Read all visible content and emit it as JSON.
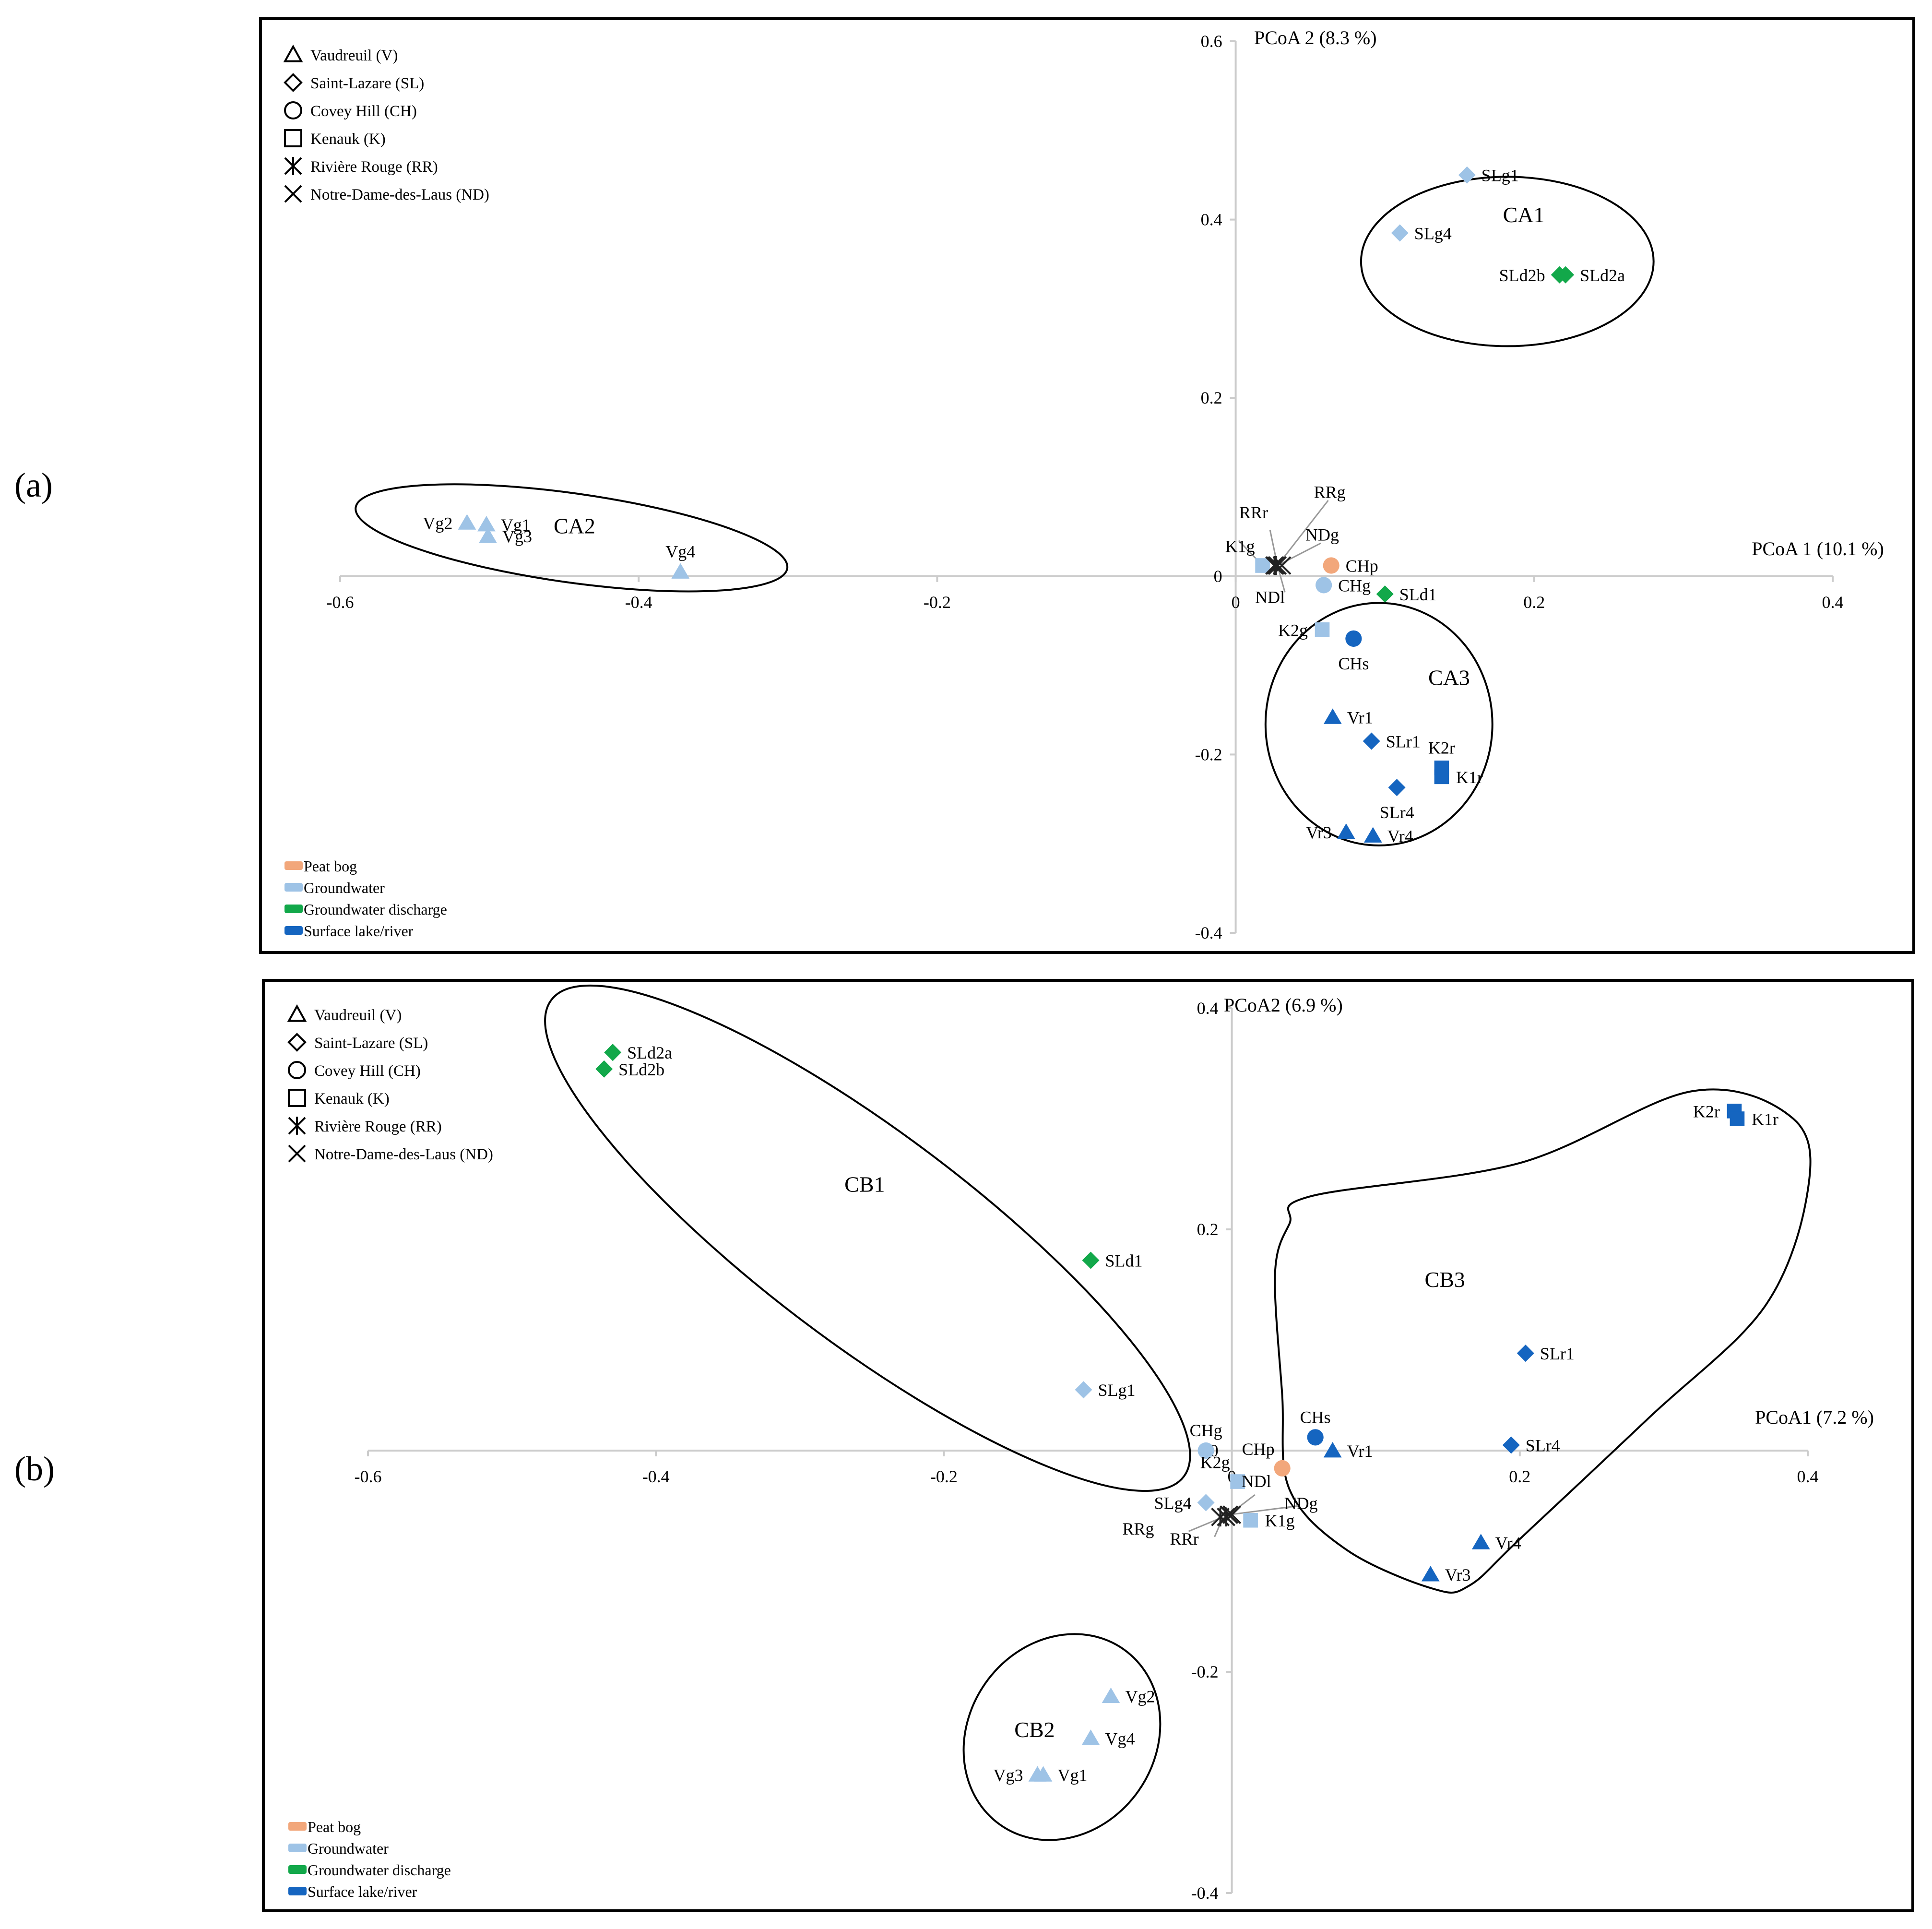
{
  "colors": {
    "peat": "#F2A77B",
    "groundwater": "#9EC3E6",
    "discharge": "#12A84A",
    "surface": "#1565C0",
    "axis": "#cccccc"
  },
  "chart_data": [
    {
      "panel_label": "(a)",
      "type": "scatter",
      "xlabel": "PCoA 1 (10.1 %)",
      "ylabel": "PCoA 2 (8.3 %)",
      "xlim": [
        -0.6,
        0.4
      ],
      "ylim": [
        -0.4,
        0.6
      ],
      "xticks": [
        "-0.6",
        "-0.4",
        "-0.2",
        "0",
        "0.2",
        "0.4"
      ],
      "yticks": [
        "0.6",
        "0.4",
        "0.2",
        "0",
        "-0.2",
        "-0.4"
      ],
      "shape_legend": [
        {
          "shape": "triangle",
          "label": "Vaudreuil (V)"
        },
        {
          "shape": "diamond",
          "label": "Saint-Lazare (SL)"
        },
        {
          "shape": "circle",
          "label": "Covey Hill (CH)"
        },
        {
          "shape": "square",
          "label": "Kenauk (K)"
        },
        {
          "shape": "asterisk",
          "label": "Rivière Rouge (RR)"
        },
        {
          "shape": "cross",
          "label": "Notre-Dame-des-Laus (ND)"
        }
      ],
      "color_legend": [
        {
          "type": "peat",
          "label": "Peat bog"
        },
        {
          "type": "groundwater",
          "label": "Groundwater"
        },
        {
          "type": "discharge",
          "label": "Groundwater discharge"
        },
        {
          "type": "surface",
          "label": "Surface lake/river"
        }
      ],
      "points": [
        {
          "label": "SLg1",
          "x": 0.155,
          "y": 0.45,
          "shape": "diamond",
          "type": "groundwater",
          "lpos": "r"
        },
        {
          "label": "SLg4",
          "x": 0.11,
          "y": 0.385,
          "shape": "diamond",
          "type": "groundwater",
          "lpos": "r"
        },
        {
          "label": "SLd2b",
          "x": 0.217,
          "y": 0.338,
          "shape": "diamond",
          "type": "discharge",
          "lpos": "l"
        },
        {
          "label": "SLd2a",
          "x": 0.221,
          "y": 0.338,
          "shape": "diamond",
          "type": "discharge",
          "lpos": "r"
        },
        {
          "label": "Vg2",
          "x": -0.515,
          "y": 0.06,
          "shape": "triangle",
          "type": "groundwater",
          "lpos": "l"
        },
        {
          "label": "Vg1",
          "x": -0.502,
          "y": 0.058,
          "shape": "triangle",
          "type": "groundwater",
          "lpos": "r"
        },
        {
          "label": "Vg3",
          "x": -0.501,
          "y": 0.045,
          "shape": "triangle",
          "type": "groundwater",
          "lpos": "r"
        },
        {
          "label": "Vg4",
          "x": -0.372,
          "y": 0.005,
          "shape": "triangle",
          "type": "groundwater",
          "lpos": "t"
        },
        {
          "label": "K1g",
          "x": 0.018,
          "y": 0.012,
          "shape": "square",
          "type": "groundwater",
          "lpos": "tl"
        },
        {
          "label": "RRr",
          "x": 0.027,
          "y": 0.012,
          "shape": "asterisk",
          "type": "groundwater",
          "lpos": "none"
        },
        {
          "label": "RRg",
          "x": 0.026,
          "y": 0.012,
          "shape": "asterisk",
          "type": "groundwater",
          "lpos": "none"
        },
        {
          "label": "NDl",
          "x": 0.028,
          "y": 0.012,
          "shape": "cross",
          "type": "groundwater",
          "lpos": "none"
        },
        {
          "label": "NDg",
          "x": 0.031,
          "y": 0.012,
          "shape": "cross",
          "type": "groundwater",
          "lpos": "none"
        },
        {
          "label": "CHp",
          "x": 0.064,
          "y": 0.012,
          "shape": "circle",
          "type": "peat",
          "lpos": "r"
        },
        {
          "label": "CHg",
          "x": 0.059,
          "y": -0.01,
          "shape": "circle",
          "type": "groundwater",
          "lpos": "r"
        },
        {
          "label": "SLd1",
          "x": 0.1,
          "y": -0.02,
          "shape": "diamond",
          "type": "discharge",
          "lpos": "r"
        },
        {
          "label": "K2g",
          "x": 0.058,
          "y": -0.06,
          "shape": "square",
          "type": "groundwater",
          "lpos": "l"
        },
        {
          "label": "CHs",
          "x": 0.079,
          "y": -0.07,
          "shape": "circle",
          "type": "surface",
          "lpos": "b"
        },
        {
          "label": "Vr1",
          "x": 0.065,
          "y": -0.158,
          "shape": "triangle",
          "type": "surface",
          "lpos": "r"
        },
        {
          "label": "SLr1",
          "x": 0.091,
          "y": -0.185,
          "shape": "diamond",
          "type": "surface",
          "lpos": "r"
        },
        {
          "label": "K2r",
          "x": 0.138,
          "y": -0.215,
          "shape": "square",
          "type": "surface",
          "lpos": "t"
        },
        {
          "label": "K1r",
          "x": 0.138,
          "y": -0.225,
          "shape": "square",
          "type": "surface",
          "lpos": "r"
        },
        {
          "label": "SLr4",
          "x": 0.108,
          "y": -0.237,
          "shape": "diamond",
          "type": "surface",
          "lpos": "b"
        },
        {
          "label": "Vr3",
          "x": 0.074,
          "y": -0.287,
          "shape": "triangle",
          "type": "surface",
          "lpos": "l"
        },
        {
          "label": "Vr4",
          "x": 0.092,
          "y": -0.291,
          "shape": "triangle",
          "type": "surface",
          "lpos": "r"
        }
      ],
      "free_labels": [
        {
          "text": "RRg",
          "x": 0.063,
          "y": 0.088
        },
        {
          "text": "RRr",
          "x": 0.012,
          "y": 0.065
        },
        {
          "text": "NDg",
          "x": 0.058,
          "y": 0.04
        },
        {
          "text": "NDl",
          "x": 0.023,
          "y": -0.03
        }
      ],
      "leader_lines": [
        {
          "from": [
            0.028,
            0.012
          ],
          "to": [
            0.062,
            0.085
          ]
        },
        {
          "from": [
            0.028,
            0.012
          ],
          "to": [
            0.023,
            0.052
          ]
        },
        {
          "from": [
            0.028,
            0.012
          ],
          "to": [
            0.057,
            0.037
          ]
        },
        {
          "from": [
            0.028,
            0.012
          ],
          "to": [
            0.033,
            -0.018
          ]
        },
        {
          "from": [
            0.018,
            0.012
          ],
          "to": [
            0.002,
            0.04
          ]
        }
      ],
      "clusters": [
        {
          "label": "CA1",
          "cx": 0.182,
          "cy": 0.353,
          "rx": 0.098,
          "ry": 0.095,
          "rot": 0,
          "lx": 0.193,
          "ly": 0.397
        },
        {
          "label": "CA2",
          "cx": -0.445,
          "cy": 0.043,
          "rx": 0.146,
          "ry": 0.05,
          "rot": 8,
          "lx": -0.443,
          "ly": 0.048
        },
        {
          "label": "CA3",
          "cx": 0.096,
          "cy": -0.166,
          "rx": 0.076,
          "ry": 0.136,
          "rot": 0,
          "lx": 0.143,
          "ly": -0.122
        }
      ]
    },
    {
      "panel_label": "(b)",
      "type": "scatter",
      "xlabel": "PCoA1 (7.2 %)",
      "ylabel": "PCoA2 (6.9 %)",
      "xlim": [
        -0.6,
        0.4
      ],
      "ylim": [
        -0.4,
        0.4
      ],
      "xticks": [
        "-0.6",
        "-0.4",
        "-0.2",
        "0",
        "0.2",
        "0.4"
      ],
      "yticks": [
        "0.4",
        "0.2",
        "0",
        "-0.2",
        "-0.4"
      ],
      "shape_legend": [
        {
          "shape": "triangle",
          "label": "Vaudreuil (V)"
        },
        {
          "shape": "diamond",
          "label": "Saint-Lazare (SL)"
        },
        {
          "shape": "circle",
          "label": "Covey Hill (CH)"
        },
        {
          "shape": "square",
          "label": "Kenauk (K)"
        },
        {
          "shape": "asterisk",
          "label": "Rivière Rouge (RR)"
        },
        {
          "shape": "cross",
          "label": "Notre-Dame-des-Laus (ND)"
        }
      ],
      "color_legend": [
        {
          "type": "peat",
          "label": "Peat bog"
        },
        {
          "type": "groundwater",
          "label": "Groundwater"
        },
        {
          "type": "discharge",
          "label": "Groundwater discharge"
        },
        {
          "type": "surface",
          "label": "Surface lake/river"
        }
      ],
      "points": [
        {
          "label": "SLd2a",
          "x": -0.43,
          "y": 0.36,
          "shape": "diamond",
          "type": "discharge",
          "lpos": "r"
        },
        {
          "label": "SLd2b",
          "x": -0.436,
          "y": 0.345,
          "shape": "diamond",
          "type": "discharge",
          "lpos": "r"
        },
        {
          "label": "K2r",
          "x": 0.349,
          "y": 0.307,
          "shape": "square",
          "type": "surface",
          "lpos": "l"
        },
        {
          "label": "K1r",
          "x": 0.351,
          "y": 0.3,
          "shape": "square",
          "type": "surface",
          "lpos": "r"
        },
        {
          "label": "SLd1",
          "x": -0.098,
          "y": 0.172,
          "shape": "diamond",
          "type": "discharge",
          "lpos": "r"
        },
        {
          "label": "SLr1",
          "x": 0.204,
          "y": 0.088,
          "shape": "diamond",
          "type": "surface",
          "lpos": "r"
        },
        {
          "label": "SLg1",
          "x": -0.103,
          "y": 0.055,
          "shape": "diamond",
          "type": "groundwater",
          "lpos": "r"
        },
        {
          "label": "CHs",
          "x": 0.058,
          "y": 0.012,
          "shape": "circle",
          "type": "surface",
          "lpos": "t"
        },
        {
          "label": "CHg",
          "x": -0.018,
          "y": 0.0,
          "shape": "circle",
          "type": "groundwater",
          "lpos": "t"
        },
        {
          "label": "Vr1",
          "x": 0.07,
          "y": 0.0,
          "shape": "triangle",
          "type": "surface",
          "lpos": "r"
        },
        {
          "label": "SLr4",
          "x": 0.194,
          "y": 0.005,
          "shape": "diamond",
          "type": "surface",
          "lpos": "r"
        },
        {
          "label": "CHp",
          "x": 0.035,
          "y": -0.016,
          "shape": "circle",
          "type": "peat",
          "lpos": "tl"
        },
        {
          "label": "K2g",
          "x": 0.004,
          "y": -0.028,
          "shape": "square",
          "type": "groundwater",
          "lpos": "tl"
        },
        {
          "label": "SLg4",
          "x": -0.018,
          "y": -0.047,
          "shape": "diamond",
          "type": "groundwater",
          "lpos": "l"
        },
        {
          "label": "RRg",
          "x": -0.008,
          "y": -0.06,
          "shape": "asterisk",
          "type": "groundwater",
          "lpos": "none"
        },
        {
          "label": "RRr",
          "x": -0.004,
          "y": -0.06,
          "shape": "asterisk",
          "type": "groundwater",
          "lpos": "none"
        },
        {
          "label": "NDl",
          "x": -0.002,
          "y": -0.058,
          "shape": "cross",
          "type": "groundwater",
          "lpos": "none"
        },
        {
          "label": "NDg",
          "x": 0.0,
          "y": -0.058,
          "shape": "cross",
          "type": "groundwater",
          "lpos": "none"
        },
        {
          "label": "K1g",
          "x": 0.013,
          "y": -0.063,
          "shape": "square",
          "type": "groundwater",
          "lpos": "r"
        },
        {
          "label": "Vr4",
          "x": 0.173,
          "y": -0.083,
          "shape": "triangle",
          "type": "surface",
          "lpos": "r"
        },
        {
          "label": "Vr3",
          "x": 0.138,
          "y": -0.112,
          "shape": "triangle",
          "type": "surface",
          "lpos": "r"
        },
        {
          "label": "Vg2",
          "x": -0.084,
          "y": -0.222,
          "shape": "triangle",
          "type": "groundwater",
          "lpos": "r"
        },
        {
          "label": "Vg4",
          "x": -0.098,
          "y": -0.26,
          "shape": "triangle",
          "type": "groundwater",
          "lpos": "r"
        },
        {
          "label": "Vg3",
          "x": -0.135,
          "y": -0.293,
          "shape": "triangle",
          "type": "groundwater",
          "lpos": "l"
        },
        {
          "label": "Vg1",
          "x": -0.131,
          "y": -0.293,
          "shape": "triangle",
          "type": "groundwater",
          "lpos": "r"
        }
      ],
      "free_labels": [
        {
          "text": "NDl",
          "x": 0.017,
          "y": -0.033
        },
        {
          "text": "NDg",
          "x": 0.048,
          "y": -0.053
        },
        {
          "text": "RRg",
          "x": -0.065,
          "y": -0.076
        },
        {
          "text": "RRr",
          "x": -0.033,
          "y": -0.085
        }
      ],
      "leader_lines": [
        {
          "from": [
            -0.002,
            -0.058
          ],
          "to": [
            0.016,
            -0.04
          ]
        },
        {
          "from": [
            -0.002,
            -0.058
          ],
          "to": [
            0.046,
            -0.05
          ]
        },
        {
          "from": [
            -0.006,
            -0.06
          ],
          "to": [
            -0.03,
            -0.073
          ]
        },
        {
          "from": [
            -0.006,
            -0.06
          ],
          "to": [
            -0.012,
            -0.078
          ]
        }
      ],
      "clusters": [
        {
          "label": "CB1",
          "cx": -0.253,
          "cy": 0.192,
          "rx": 0.275,
          "ry": 0.095,
          "rot": 37,
          "lx": -0.255,
          "ly": 0.234
        },
        {
          "label": "CB2",
          "cx": -0.118,
          "cy": -0.259,
          "rx": 0.065,
          "ry": 0.097,
          "rot": 35,
          "lx": -0.137,
          "ly": -0.259
        }
      ],
      "blob_cluster": {
        "label": "CB3",
        "lx": 0.148,
        "ly": 0.148
      }
    }
  ]
}
